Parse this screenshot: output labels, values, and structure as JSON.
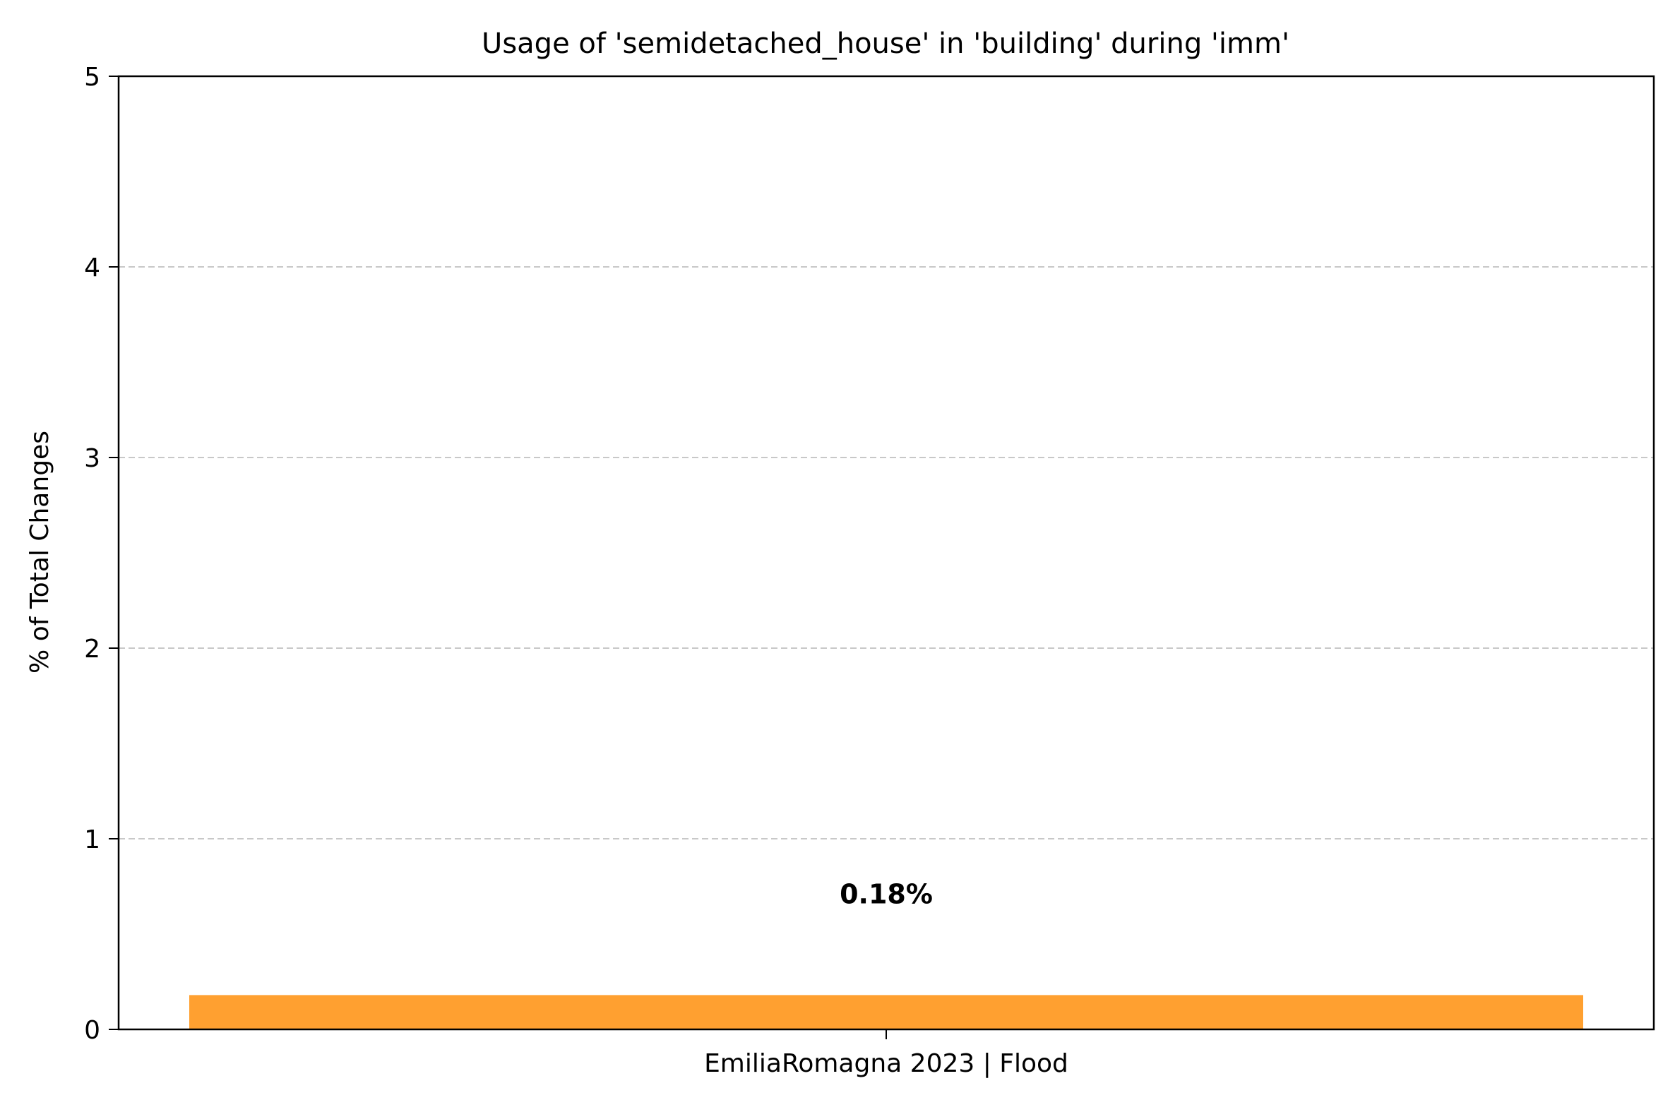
{
  "chart_data": {
    "type": "bar",
    "title": "Usage of 'semidetached_house' in 'building' during 'imm'",
    "xlabel": "",
    "ylabel": "% of Total Changes",
    "categories": [
      "EmiliaRomagna 2023 | Flood"
    ],
    "values": [
      0.18
    ],
    "value_labels": [
      "0.18%"
    ],
    "ylim": [
      0,
      5
    ],
    "yticks": [
      "0",
      "1",
      "2",
      "3",
      "4",
      "5"
    ],
    "grid": "horizontal dashed",
    "legend": "none",
    "colors": {
      "bar": "#ffa030",
      "grid": "#c8c8c8",
      "axis": "#000000"
    }
  }
}
